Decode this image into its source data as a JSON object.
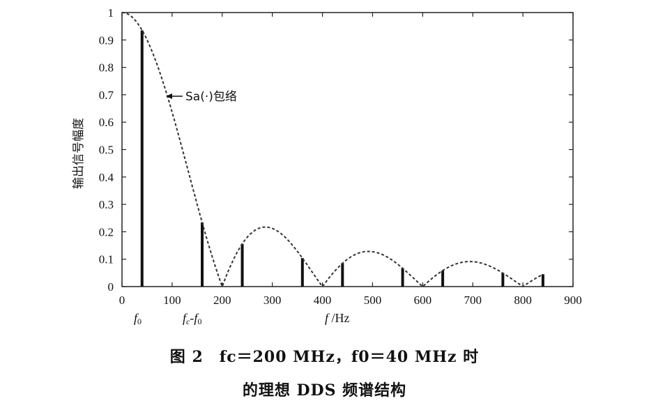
{
  "chart_data": {
    "type": "bar",
    "xlabel": "f /Hz",
    "ylabel": "输出信号幅度",
    "xlim": [
      0,
      900
    ],
    "ylim": [
      0,
      1
    ],
    "xticks": [
      0,
      100,
      200,
      300,
      400,
      500,
      600,
      700,
      800,
      900
    ],
    "yticks": [
      0,
      0.1,
      0.2,
      0.3,
      0.4,
      0.5,
      0.6,
      0.7,
      0.8,
      0.9,
      1
    ],
    "ytick_labels": [
      "0",
      "0.1",
      "0.2",
      "0.3",
      "0.4",
      "0.5",
      "0.6",
      "0.7",
      "0.8",
      "0.9",
      "1"
    ],
    "series": [
      {
        "name": "spectral lines",
        "x": [
          40,
          160,
          240,
          360,
          440,
          560,
          640,
          760,
          840
        ],
        "values": [
          0.935,
          0.234,
          0.156,
          0.104,
          0.085,
          0.067,
          0.058,
          0.049,
          0.045
        ]
      }
    ],
    "envelope": {
      "name": "Sa(·) envelope",
      "fs": 200,
      "x_range": [
        0,
        840
      ]
    },
    "annotation": "Sa(·)包络",
    "x_markers": [
      {
        "at": 40,
        "label": "f0"
      },
      {
        "at": 160,
        "label": "fc-f0"
      }
    ]
  },
  "caption": {
    "line1": "图 2　fc＝200 MHz，f0＝40 MHz 时",
    "line2": "的理想 DDS 频谱结构"
  }
}
